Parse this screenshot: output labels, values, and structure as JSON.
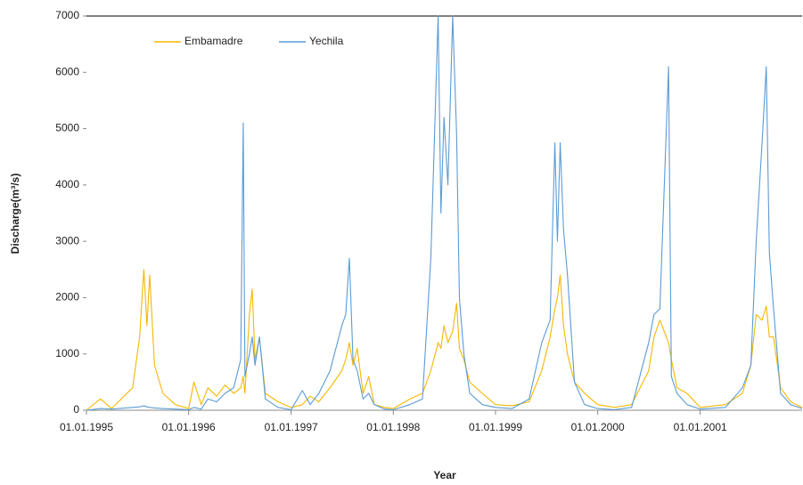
{
  "chart_data": {
    "type": "line",
    "x_label": "Year",
    "y_label": "Discharge(m³/s)",
    "x": [
      "1995-01-01",
      "1995-02-20",
      "1995-04-01",
      "1995-06-15",
      "1995-07-10",
      "1995-07-25",
      "1995-08-05",
      "1995-08-15",
      "1995-09-01",
      "1995-10-01",
      "1995-11-15",
      "1996-01-01",
      "1996-01-20",
      "1996-02-15",
      "1996-03-10",
      "1996-04-10",
      "1996-05-10",
      "1996-06-10",
      "1996-07-05",
      "1996-07-14",
      "1996-07-20",
      "1996-08-05",
      "1996-08-15",
      "1996-08-25",
      "1996-09-10",
      "1996-10-01",
      "1996-11-15",
      "1997-01-01",
      "1997-02-10",
      "1997-03-10",
      "1997-04-10",
      "1997-05-20",
      "1997-07-01",
      "1997-07-15",
      "1997-07-28",
      "1997-08-10",
      "1997-08-25",
      "1997-09-15",
      "1997-10-05",
      "1997-10-25",
      "1997-12-01",
      "1998-01-01",
      "1998-03-01",
      "1998-04-15",
      "1998-05-15",
      "1998-06-10",
      "1998-06-20",
      "1998-07-01",
      "1998-07-15",
      "1998-08-01",
      "1998-08-15",
      "1998-08-25",
      "1998-09-10",
      "1998-10-01",
      "1998-11-15",
      "1999-01-01",
      "1999-03-01",
      "1999-05-01",
      "1999-06-15",
      "1999-07-15",
      "1999-08-01",
      "1999-08-10",
      "1999-08-20",
      "1999-09-01",
      "1999-09-15",
      "1999-10-10",
      "1999-11-15",
      "2000-01-01",
      "2000-03-01",
      "2000-05-01",
      "2000-07-01",
      "2000-07-20",
      "2000-08-10",
      "2000-09-10",
      "2000-09-20",
      "2000-10-10",
      "2000-11-15",
      "2001-01-01",
      "2001-04-01",
      "2001-06-01",
      "2001-07-01",
      "2001-07-20",
      "2001-08-10",
      "2001-08-25",
      "2001-09-05",
      "2001-09-20",
      "2001-10-15",
      "2001-11-20",
      "2001-12-31"
    ],
    "series": [
      {
        "name": "Embamadre",
        "color": "#f5b800",
        "values": [
          0,
          200,
          30,
          400,
          1300,
          2500,
          1500,
          2400,
          800,
          300,
          100,
          30,
          500,
          100,
          400,
          250,
          450,
          300,
          400,
          600,
          300,
          1700,
          2150,
          900,
          1300,
          300,
          150,
          50,
          100,
          250,
          150,
          400,
          700,
          900,
          1200,
          800,
          1100,
          300,
          600,
          100,
          50,
          30,
          200,
          300,
          700,
          1200,
          1100,
          1500,
          1200,
          1400,
          1900,
          1100,
          900,
          500,
          300,
          100,
          80,
          150,
          700,
          1300,
          1800,
          2000,
          2400,
          1500,
          1000,
          500,
          300,
          100,
          50,
          100,
          700,
          1300,
          1600,
          1200,
          900,
          400,
          300,
          50,
          100,
          300,
          800,
          1700,
          1600,
          1850,
          1300,
          1300,
          400,
          150,
          50
        ]
      },
      {
        "name": "Yechila",
        "color": "#5b9bd5",
        "values": [
          0,
          30,
          20,
          50,
          60,
          80,
          60,
          50,
          40,
          30,
          20,
          10,
          50,
          20,
          200,
          150,
          300,
          400,
          900,
          5100,
          600,
          1000,
          1300,
          800,
          1300,
          200,
          50,
          10,
          350,
          100,
          300,
          700,
          1500,
          1700,
          2700,
          900,
          700,
          200,
          300,
          100,
          20,
          10,
          100,
          200,
          2700,
          7000,
          3500,
          5200,
          4000,
          7000,
          4900,
          2000,
          1000,
          300,
          100,
          50,
          30,
          200,
          1200,
          1600,
          4750,
          3000,
          4750,
          3200,
          2400,
          500,
          100,
          30,
          10,
          50,
          1200,
          1700,
          1800,
          6100,
          600,
          300,
          100,
          20,
          50,
          400,
          800,
          3000,
          4750,
          6100,
          2800,
          1800,
          300,
          100,
          30
        ]
      }
    ],
    "xlim": [
      "1995-01-01",
      "2001-12-31"
    ],
    "xticks": [
      {
        "value": "1995-01-01",
        "label": "01.01.1995"
      },
      {
        "value": "1996-01-01",
        "label": "01.01.1996"
      },
      {
        "value": "1997-01-01",
        "label": "01.01.1997"
      },
      {
        "value": "1998-01-01",
        "label": "01.01.1998"
      },
      {
        "value": "1999-01-01",
        "label": "01.01.1999"
      },
      {
        "value": "2000-01-01",
        "label": "01.01.2000"
      },
      {
        "value": "2001-01-01",
        "label": "01.01.2001"
      }
    ],
    "ylim": [
      0,
      7000
    ],
    "yticks": [
      0,
      1000,
      2000,
      3000,
      4000,
      5000,
      6000,
      7000
    ],
    "legend": "top-left"
  }
}
